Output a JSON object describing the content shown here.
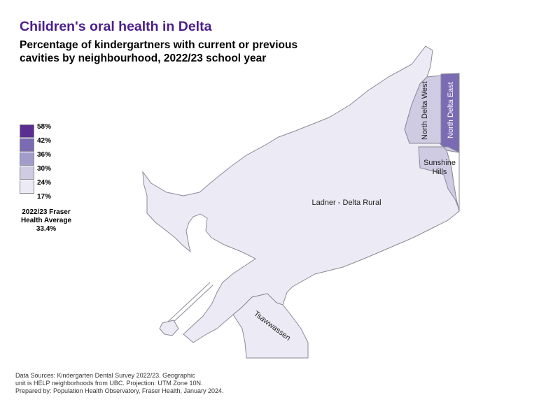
{
  "title": "Children's oral health in Delta",
  "subtitle": "Percentage of kindergartners with current or previous cavities by neighbourhood, 2022/23 school year",
  "legend": {
    "breaks": [
      {
        "label": "58%",
        "color": "#5a2d91"
      },
      {
        "label": "42%",
        "color": "#7b6bb3"
      },
      {
        "label": "36%",
        "color": "#a29ccb"
      },
      {
        "label": "30%",
        "color": "#cfcbe3"
      },
      {
        "label": "24%",
        "color": "#eceaf4"
      },
      {
        "label": "17%",
        "color": null
      }
    ]
  },
  "average": {
    "line1": "2022/23 Fraser",
    "line2": "Health Average",
    "line3": "33.4%"
  },
  "regions": {
    "ladner": {
      "label": "Ladner - Delta Rural",
      "color": "#eceaf4"
    },
    "north_delta_west": {
      "label": "North Delta West",
      "color": "#cfcbe3"
    },
    "north_delta_east": {
      "label": "North Delta East",
      "color": "#7b6bb3"
    },
    "sunshine_hills": {
      "label_line1": "Sunshine",
      "label_line2": "Hills",
      "color": "#cfcbe3"
    },
    "tsawwassen": {
      "label": "Tsawwassen",
      "color": "#eceaf4"
    }
  },
  "sources": {
    "line1": "Data Sources: Kindergarten Dental Survey 2022/23. Geographic",
    "line2": "unit is HELP neighborhoods from UBC. Projection: UTM Zone 10N.",
    "line3": "Prepared by: Population Health Observatory, Fraser Health, January 2024."
  }
}
